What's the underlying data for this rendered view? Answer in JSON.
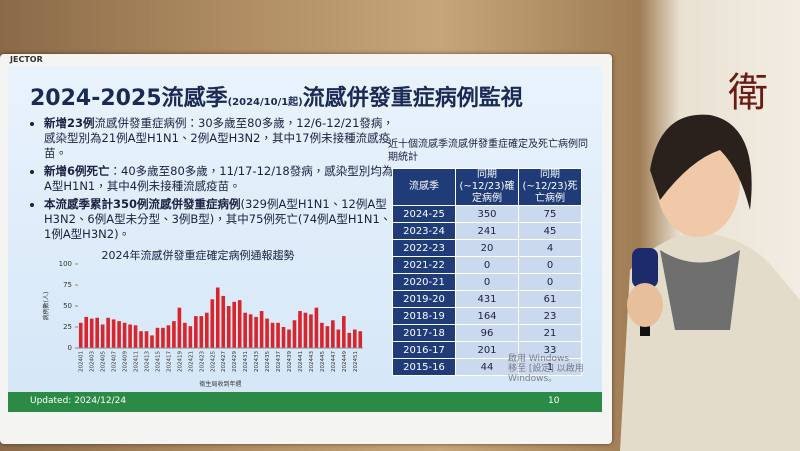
{
  "monitor_brand": "JECTOR",
  "wall_sign": "衛",
  "slide": {
    "title": {
      "main": "2024-2025流感季",
      "note": "(2024/10/1起)",
      "rest": "流感併發重症病例監視"
    },
    "bullets": [
      {
        "lead": "新增23例",
        "body": "流感併發重症病例：30多歲至80多歲，12/6-12/21發病，感染型別為21例A型H1N1、2例A型H3N2，其中17例未接種流感疫苗。"
      },
      {
        "lead": "新增6例死亡",
        "body": "：40多歲至80多歲，11/17-12/18發病，感染型別均為A型H1N1，其中4例未接種流感疫苗。"
      },
      {
        "lead": "本流感季累計350例流感併發重症病例",
        "body": "(329例A型H1N1、12例A型H3N2、6例A型未分型、3例B型)，其中75例死亡(74例A型H1N1、1例A型H3N2)。"
      }
    ],
    "table": {
      "title": "近十個流感季流感併發重症確定及死亡病例同期統計",
      "header": [
        "流感季",
        "同期(~12/23)確定病例",
        "同期(~12/23)死亡病例"
      ],
      "rows": [
        [
          "2024-25",
          "350",
          "75"
        ],
        [
          "2023-24",
          "241",
          "45"
        ],
        [
          "2022-23",
          "20",
          "4"
        ],
        [
          "2021-22",
          "0",
          "0"
        ],
        [
          "2020-21",
          "0",
          "0"
        ],
        [
          "2019-20",
          "431",
          "61"
        ],
        [
          "2018-19",
          "164",
          "23"
        ],
        [
          "2017-18",
          "96",
          "21"
        ],
        [
          "2016-17",
          "201",
          "33"
        ],
        [
          "2015-16",
          "44",
          "1"
        ]
      ]
    },
    "watermark": [
      "啟用 Windows",
      "移至 [設定] 以啟用 Windows。"
    ],
    "updated": "Updated: 2024/12/24",
    "page": "10"
  },
  "chart_data": {
    "type": "bar",
    "title": "2024年流感併發重症確定病例通報趨勢",
    "y_label": "病例數(人)",
    "x_label": "衛生局收到年週",
    "color": "#d8252b",
    "categories": [
      "202401",
      null,
      "202403",
      null,
      "202405",
      null,
      "202407",
      null,
      "202409",
      null,
      "202411",
      null,
      "202413",
      null,
      "202415",
      null,
      "202417",
      null,
      "202419",
      null,
      "202421",
      null,
      "202423",
      null,
      "202425",
      null,
      "202427",
      null,
      "202429",
      null,
      "202431",
      null,
      "202433",
      null,
      "202435",
      null,
      "202437",
      null,
      "202439",
      null,
      "202441",
      null,
      "202443",
      null,
      "202445",
      null,
      "202447",
      null,
      "202449",
      null,
      "202451",
      null
    ],
    "values": [
      30,
      37,
      35,
      36,
      28,
      36,
      34,
      32,
      30,
      28,
      27,
      20,
      20,
      15,
      24,
      24,
      27,
      32,
      48,
      30,
      26,
      38,
      38,
      42,
      58,
      72,
      62,
      50,
      55,
      57,
      42,
      40,
      37,
      44,
      35,
      30,
      30,
      25,
      22,
      33,
      44,
      42,
      40,
      48,
      30,
      26,
      33,
      22,
      38,
      18,
      22,
      20
    ],
    "ylim": [
      0,
      100
    ],
    "yticks": [
      0,
      25,
      50,
      75,
      100
    ]
  }
}
